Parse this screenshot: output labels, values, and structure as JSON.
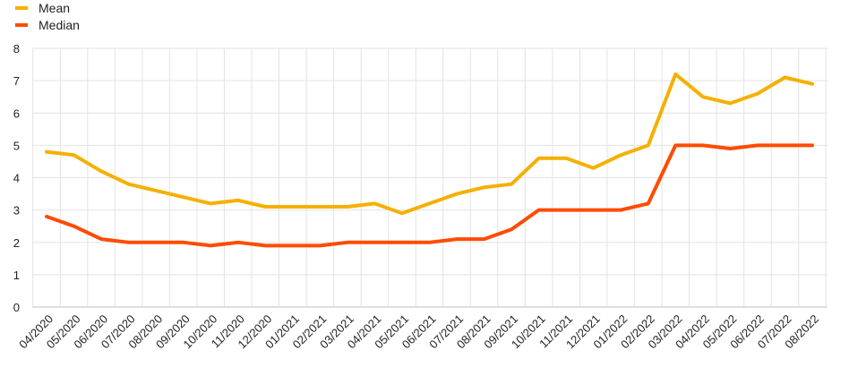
{
  "chart_data": {
    "type": "line",
    "categories": [
      "04/2020",
      "05/2020",
      "06/2020",
      "07/2020",
      "08/2020",
      "09/2020",
      "10/2020",
      "11/2020",
      "12/2020",
      "01/2021",
      "02/2021",
      "03/2021",
      "04/2021",
      "05/2021",
      "06/2021",
      "07/2021",
      "08/2021",
      "09/2021",
      "10/2021",
      "11/2021",
      "12/2021",
      "01/2022",
      "02/2022",
      "03/2022",
      "04/2022",
      "05/2022",
      "06/2022",
      "07/2022",
      "08/2022"
    ],
    "series": [
      {
        "name": "Mean",
        "color": "#f5b000",
        "values": [
          4.8,
          4.7,
          4.2,
          3.8,
          3.6,
          3.4,
          3.2,
          3.3,
          3.1,
          3.1,
          3.1,
          3.1,
          3.2,
          2.9,
          3.2,
          3.5,
          3.7,
          3.8,
          4.6,
          4.6,
          4.3,
          4.7,
          5.0,
          7.2,
          6.5,
          6.3,
          6.6,
          7.1,
          6.9
        ]
      },
      {
        "name": "Median",
        "color": "#ff4b00",
        "values": [
          2.8,
          2.5,
          2.1,
          2.0,
          2.0,
          2.0,
          1.9,
          2.0,
          1.9,
          1.9,
          1.9,
          2.0,
          2.0,
          2.0,
          2.0,
          2.1,
          2.1,
          2.4,
          3.0,
          3.0,
          3.0,
          3.0,
          3.2,
          5.0,
          5.0,
          4.9,
          5.0,
          5.0,
          5.0
        ]
      }
    ],
    "yticks": [
      "0",
      "1",
      "2",
      "3",
      "4",
      "5",
      "6",
      "7",
      "8"
    ],
    "ylim": [
      0,
      8
    ],
    "grid": true,
    "legend": "top-left"
  }
}
